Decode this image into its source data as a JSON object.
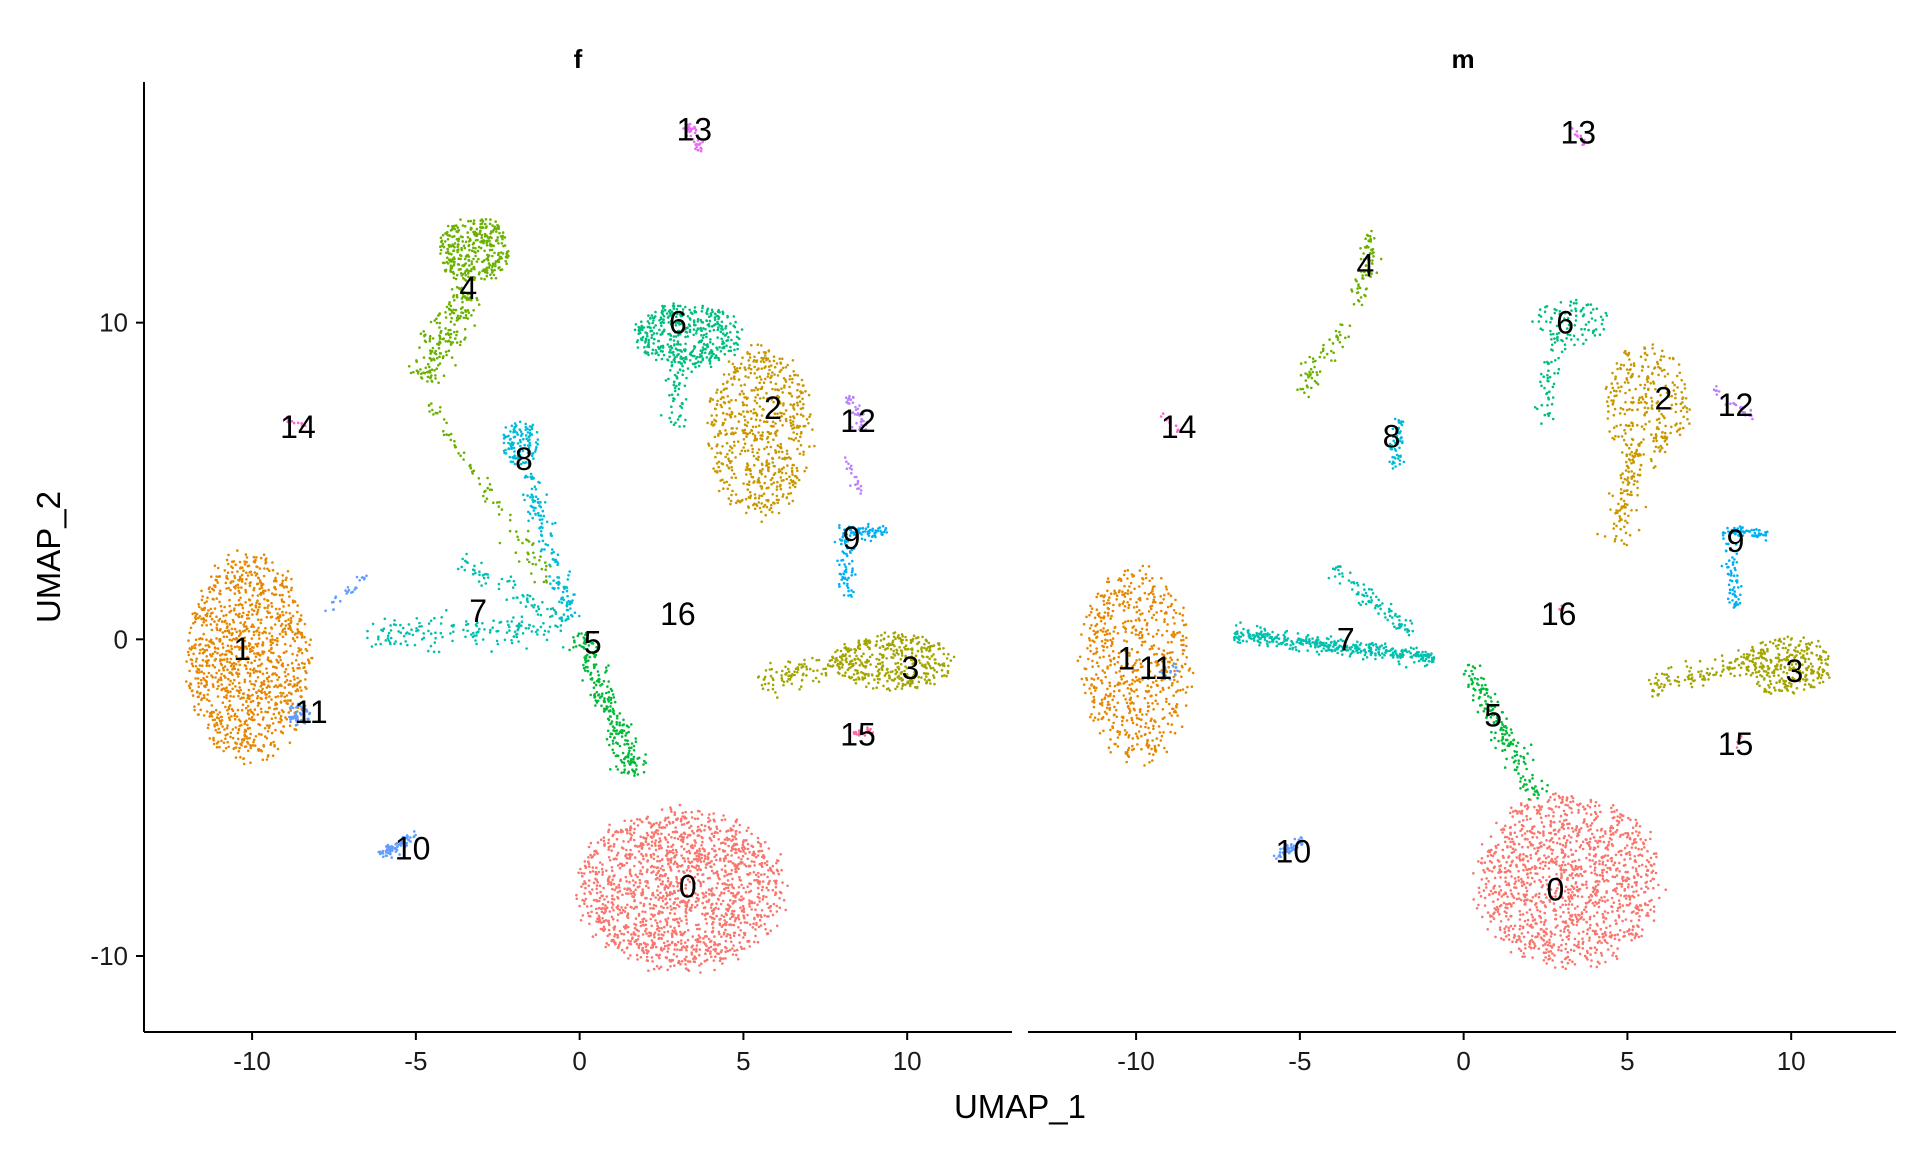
{
  "chart_data": {
    "type": "scatter",
    "xlabel": "UMAP_1",
    "ylabel": "UMAP_2",
    "xlim": [
      -13.3,
      13.2
    ],
    "ylim": [
      -12.4,
      17.6
    ],
    "x_ticks": [
      -10,
      -5,
      0,
      5,
      10
    ],
    "y_ticks": [
      -10,
      0,
      10
    ],
    "x_tick_labels": [
      "-10",
      "-5",
      "0",
      "5",
      "10"
    ],
    "y_tick_labels": [
      "-10",
      "0",
      "10"
    ],
    "grid": false,
    "legend": "none",
    "cluster_colors": {
      "0": "#F8766D",
      "1": "#E58700",
      "2": "#C99800",
      "3": "#A3A500",
      "4": "#6BB100",
      "5": "#00BA38",
      "6": "#00BF7D",
      "7": "#00C0AF",
      "8": "#00BCD8",
      "9": "#00B0F6",
      "10": "#619CFF",
      "11": "#619CFF",
      "12": "#B983FF",
      "13": "#E76BF3",
      "14": "#FD61D1",
      "15": "#FF67A4",
      "16": "#FF67A4"
    },
    "facets": [
      {
        "title": "f",
        "labels": [
          {
            "text": "0",
            "x": 3.3,
            "y": -7.8
          },
          {
            "text": "1",
            "x": -10.3,
            "y": -0.3
          },
          {
            "text": "2",
            "x": 5.9,
            "y": 7.3
          },
          {
            "text": "3",
            "x": 10.1,
            "y": -0.9
          },
          {
            "text": "4",
            "x": -3.4,
            "y": 11.1
          },
          {
            "text": "5",
            "x": 0.4,
            "y": -0.1
          },
          {
            "text": "6",
            "x": 3.0,
            "y": 10.0
          },
          {
            "text": "7",
            "x": -3.1,
            "y": 0.9
          },
          {
            "text": "8",
            "x": -1.7,
            "y": 5.7
          },
          {
            "text": "9",
            "x": 8.3,
            "y": 3.2
          },
          {
            "text": "10",
            "x": -5.1,
            "y": -6.6
          },
          {
            "text": "11",
            "x": -8.2,
            "y": -2.3
          },
          {
            "text": "12",
            "x": 8.5,
            "y": 6.9
          },
          {
            "text": "13",
            "x": 3.5,
            "y": 16.1
          },
          {
            "text": "14",
            "x": -8.6,
            "y": 6.7
          },
          {
            "text": "15",
            "x": 8.5,
            "y": -3.0
          },
          {
            "text": "16",
            "x": 3.0,
            "y": 0.8
          }
        ],
        "clusters": [
          {
            "id": "0",
            "shape": "blob",
            "cx": 3.1,
            "cy": -7.9,
            "rx": 3.4,
            "ry": 2.7,
            "n": 1600
          },
          {
            "id": "1",
            "shape": "blob",
            "cx": -10.1,
            "cy": -0.6,
            "rx": 2.0,
            "ry": 3.5,
            "n": 1150
          },
          {
            "id": "2",
            "shape": "blob",
            "cx": 5.5,
            "cy": 6.6,
            "rx": 1.7,
            "ry": 2.9,
            "n": 650
          },
          {
            "id": "3",
            "shape": "blob",
            "cx": 9.6,
            "cy": -0.7,
            "rx": 1.9,
            "ry": 1.0,
            "n": 380
          },
          {
            "id": "3",
            "shape": "stream",
            "from": [
              5.5,
              -1.4
            ],
            "to": [
              8.5,
              -0.6
            ],
            "width": 0.45,
            "n": 120
          },
          {
            "id": "4",
            "shape": "blob",
            "cx": -3.2,
            "cy": 12.3,
            "rx": 1.2,
            "ry": 1.1,
            "n": 350
          },
          {
            "id": "4",
            "shape": "stream",
            "from": [
              -3.4,
              11.0
            ],
            "to": [
              -4.8,
              8.2
            ],
            "width": 0.5,
            "n": 200
          },
          {
            "id": "4",
            "shape": "stream",
            "from": [
              -4.6,
              7.4
            ],
            "to": [
              -0.8,
              1.6
            ],
            "width": 0.35,
            "n": 90
          },
          {
            "id": "5",
            "shape": "stream",
            "from": [
              0.0,
              0.2
            ],
            "to": [
              1.7,
              -4.3
            ],
            "width": 0.4,
            "n": 260
          },
          {
            "id": "6",
            "shape": "blob",
            "cx": 3.3,
            "cy": 9.6,
            "rx": 1.8,
            "ry": 1.1,
            "n": 420
          },
          {
            "id": "6",
            "shape": "stream",
            "from": [
              3.0,
              9.0
            ],
            "to": [
              2.9,
              6.6
            ],
            "width": 0.3,
            "n": 60
          },
          {
            "id": "7",
            "shape": "stream",
            "from": [
              -6.5,
              0.2
            ],
            "to": [
              -0.5,
              0.3
            ],
            "width": 0.5,
            "n": 160
          },
          {
            "id": "7",
            "shape": "stream",
            "from": [
              -3.6,
              2.5
            ],
            "to": [
              -0.4,
              0.5
            ],
            "width": 0.35,
            "n": 70
          },
          {
            "id": "8",
            "shape": "blob",
            "cx": -1.8,
            "cy": 6.2,
            "rx": 0.6,
            "ry": 0.8,
            "n": 120
          },
          {
            "id": "8",
            "shape": "stream",
            "from": [
              -1.6,
              5.2
            ],
            "to": [
              -0.2,
              0.6
            ],
            "width": 0.3,
            "n": 140
          },
          {
            "id": "9",
            "shape": "stream",
            "from": [
              7.9,
              3.4
            ],
            "to": [
              9.4,
              3.4
            ],
            "width": 0.2,
            "n": 70
          },
          {
            "id": "9",
            "shape": "stream",
            "from": [
              8.1,
              3.2
            ],
            "to": [
              8.2,
              1.3
            ],
            "width": 0.25,
            "n": 60
          },
          {
            "id": "10",
            "shape": "stream",
            "from": [
              -6.1,
              -6.8
            ],
            "to": [
              -4.9,
              -6.2
            ],
            "width": 0.18,
            "n": 70
          },
          {
            "id": "11",
            "shape": "blob",
            "cx": -8.6,
            "cy": -2.4,
            "rx": 0.4,
            "ry": 0.4,
            "n": 50
          },
          {
            "id": "11",
            "shape": "stream",
            "from": [
              -7.8,
              0.9
            ],
            "to": [
              -6.5,
              2.0
            ],
            "width": 0.15,
            "n": 25
          },
          {
            "id": "12",
            "shape": "stream",
            "from": [
              8.2,
              7.7
            ],
            "to": [
              8.7,
              6.6
            ],
            "width": 0.2,
            "n": 40
          },
          {
            "id": "12",
            "shape": "stream",
            "from": [
              8.1,
              5.8
            ],
            "to": [
              8.6,
              4.6
            ],
            "width": 0.15,
            "n": 20
          },
          {
            "id": "13",
            "shape": "stream",
            "from": [
              3.3,
              16.3
            ],
            "to": [
              3.7,
              15.4
            ],
            "width": 0.15,
            "n": 40
          },
          {
            "id": "14",
            "shape": "stream",
            "from": [
              -9.0,
              7.0
            ],
            "to": [
              -8.4,
              6.7
            ],
            "width": 0.1,
            "n": 12
          },
          {
            "id": "15",
            "shape": "stream",
            "from": [
              8.2,
              -3.1
            ],
            "to": [
              8.9,
              -2.8
            ],
            "width": 0.15,
            "n": 20
          }
        ]
      },
      {
        "title": "m",
        "labels": [
          {
            "text": "0",
            "x": 2.8,
            "y": -7.9
          },
          {
            "text": "1",
            "x": -10.3,
            "y": -0.6
          },
          {
            "text": "2",
            "x": 6.1,
            "y": 7.6
          },
          {
            "text": "3",
            "x": 10.1,
            "y": -1.0
          },
          {
            "text": "4",
            "x": -3.0,
            "y": 11.8
          },
          {
            "text": "5",
            "x": 0.9,
            "y": -2.4
          },
          {
            "text": "6",
            "x": 3.1,
            "y": 10.0
          },
          {
            "text": "7",
            "x": -3.6,
            "y": 0.0
          },
          {
            "text": "8",
            "x": -2.2,
            "y": 6.4
          },
          {
            "text": "9",
            "x": 8.3,
            "y": 3.1
          },
          {
            "text": "10",
            "x": -5.2,
            "y": -6.7
          },
          {
            "text": "11",
            "x": -9.4,
            "y": -0.9
          },
          {
            "text": "12",
            "x": 8.3,
            "y": 7.4
          },
          {
            "text": "13",
            "x": 3.5,
            "y": 16.0
          },
          {
            "text": "14",
            "x": -8.7,
            "y": 6.7
          },
          {
            "text": "15",
            "x": 8.3,
            "y": -3.3
          },
          {
            "text": "16",
            "x": 2.9,
            "y": 0.8
          }
        ],
        "clusters": [
          {
            "id": "0",
            "shape": "blob",
            "cx": 3.2,
            "cy": -7.6,
            "rx": 3.0,
            "ry": 2.9,
            "n": 1300
          },
          {
            "id": "1",
            "shape": "blob",
            "cx": -10.0,
            "cy": -0.8,
            "rx": 1.8,
            "ry": 3.3,
            "n": 650
          },
          {
            "id": "2",
            "shape": "blob",
            "cx": 5.6,
            "cy": 7.5,
            "rx": 1.4,
            "ry": 2.0,
            "n": 280
          },
          {
            "id": "2",
            "shape": "stream",
            "from": [
              5.3,
              6.0
            ],
            "to": [
              4.6,
              3.0
            ],
            "width": 0.4,
            "n": 110
          },
          {
            "id": "3",
            "shape": "blob",
            "cx": 9.9,
            "cy": -0.8,
            "rx": 1.5,
            "ry": 1.0,
            "n": 300
          },
          {
            "id": "3",
            "shape": "stream",
            "from": [
              5.6,
              -1.5
            ],
            "to": [
              8.6,
              -0.8
            ],
            "width": 0.35,
            "n": 100
          },
          {
            "id": "4",
            "shape": "stream",
            "from": [
              -2.8,
              12.9
            ],
            "to": [
              -3.2,
              10.5
            ],
            "width": 0.3,
            "n": 70
          },
          {
            "id": "4",
            "shape": "stream",
            "from": [
              -3.6,
              10.0
            ],
            "to": [
              -5.0,
              7.8
            ],
            "width": 0.3,
            "n": 60
          },
          {
            "id": "5",
            "shape": "stream",
            "from": [
              0.1,
              -0.8
            ],
            "to": [
              2.3,
              -5.0
            ],
            "width": 0.35,
            "n": 180
          },
          {
            "id": "6",
            "shape": "blob",
            "cx": 3.3,
            "cy": 10.0,
            "rx": 1.2,
            "ry": 0.8,
            "n": 90
          },
          {
            "id": "6",
            "shape": "stream",
            "from": [
              2.9,
              9.5
            ],
            "to": [
              2.4,
              6.8
            ],
            "width": 0.35,
            "n": 50
          },
          {
            "id": "7",
            "shape": "stream",
            "from": [
              -7.0,
              0.2
            ],
            "to": [
              -0.9,
              -0.6
            ],
            "width": 0.25,
            "n": 400
          },
          {
            "id": "7",
            "shape": "stream",
            "from": [
              -4.0,
              2.3
            ],
            "to": [
              -1.6,
              0.2
            ],
            "width": 0.3,
            "n": 90
          },
          {
            "id": "8",
            "shape": "stream",
            "from": [
              -2.0,
              7.0
            ],
            "to": [
              -2.1,
              5.3
            ],
            "width": 0.2,
            "n": 60
          },
          {
            "id": "9",
            "shape": "stream",
            "from": [
              7.9,
              3.4
            ],
            "to": [
              9.3,
              3.3
            ],
            "width": 0.2,
            "n": 60
          },
          {
            "id": "9",
            "shape": "stream",
            "from": [
              8.1,
              3.1
            ],
            "to": [
              8.3,
              1.0
            ],
            "width": 0.25,
            "n": 60
          },
          {
            "id": "10",
            "shape": "stream",
            "from": [
              -5.8,
              -6.9
            ],
            "to": [
              -4.9,
              -6.3
            ],
            "width": 0.15,
            "n": 50
          },
          {
            "id": "11",
            "shape": "blob",
            "cx": -9.0,
            "cy": -1.0,
            "rx": 0.3,
            "ry": 0.3,
            "n": 15
          },
          {
            "id": "12",
            "shape": "stream",
            "from": [
              7.6,
              7.9
            ],
            "to": [
              8.9,
              7.0
            ],
            "width": 0.15,
            "n": 25
          },
          {
            "id": "13",
            "shape": "stream",
            "from": [
              3.3,
              16.2
            ],
            "to": [
              3.7,
              15.6
            ],
            "width": 0.1,
            "n": 12
          },
          {
            "id": "14",
            "shape": "stream",
            "from": [
              -9.2,
              7.1
            ],
            "to": [
              -8.6,
              6.6
            ],
            "width": 0.1,
            "n": 10
          },
          {
            "id": "15",
            "shape": "stream",
            "from": [
              8.2,
              -3.4
            ],
            "to": [
              8.5,
              -3.0
            ],
            "width": 0.1,
            "n": 8
          },
          {
            "id": "16",
            "shape": "stream",
            "from": [
              2.6,
              0.8
            ],
            "to": [
              3.1,
              1.0
            ],
            "width": 0.08,
            "n": 6
          }
        ]
      }
    ]
  }
}
